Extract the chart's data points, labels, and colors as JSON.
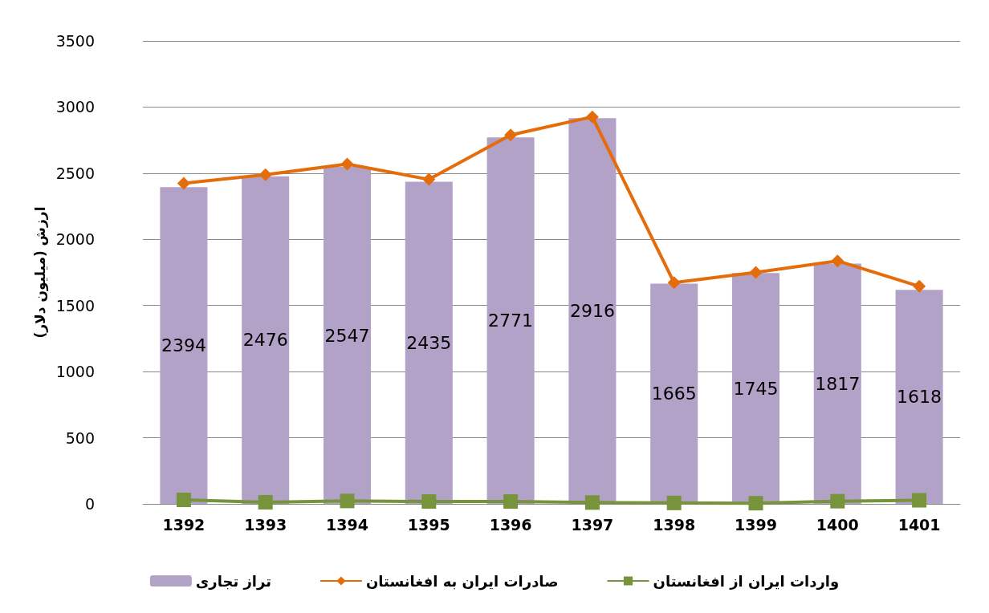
{
  "chart_data": {
    "type": "bar",
    "ylabel": "ارزش (میلیون دلار)",
    "categories": [
      "1392",
      "1393",
      "1394",
      "1395",
      "1396",
      "1397",
      "1398",
      "1399",
      "1400",
      "1401"
    ],
    "series": [
      {
        "name": "تراز تجاری",
        "color": "#b3a2c7",
        "values": [
          2394,
          2476,
          2547,
          2435,
          2771,
          2916,
          1665,
          1745,
          1817,
          1618
        ],
        "data_labels": true
      },
      {
        "name": "صادرات ایران به افغانستان",
        "type": "line",
        "color": "#e46c0a",
        "marker": "diamond",
        "values": [
          2424,
          2488,
          2569,
          2453,
          2789,
          2926,
          1672,
          1750,
          1837,
          1645
        ]
      },
      {
        "name": "واردات ایران از افغانستان",
        "type": "line",
        "color": "#77933c",
        "marker": "square",
        "values": [
          30,
          12,
          22,
          18,
          18,
          10,
          7,
          5,
          20,
          27
        ]
      }
    ],
    "ylim": [
      0,
      3500
    ],
    "yticks": [
      0,
      500,
      1000,
      1500,
      2000,
      2500,
      3000,
      3500
    ],
    "grid": "y",
    "legend": "bottom"
  }
}
